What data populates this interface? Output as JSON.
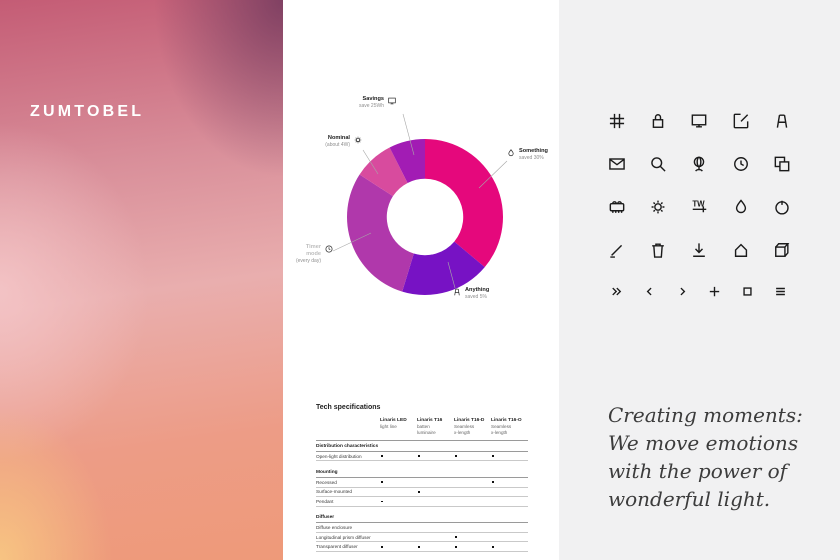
{
  "brand": {
    "logo": "ZUMTOBEL"
  },
  "chart_data": {
    "type": "donut",
    "title": "",
    "inner_radius_ratio": 0.49,
    "legend_position": "callout-labels",
    "segments": [
      {
        "name": "Something",
        "value_label": "saved 30%",
        "color": "#e5087c",
        "degrees": 130,
        "percent": 36.1,
        "icon": "droplet-icon"
      },
      {
        "name": "Anything",
        "value_label": "saved 5%",
        "color": "#7712c4",
        "degrees": 67,
        "percent": 18.6,
        "icon": "easel-icon"
      },
      {
        "name": "Timer mode",
        "value_label": "(every day)",
        "color": "#b038ab",
        "degrees": 106,
        "percent": 29.4,
        "icon": "clock-icon"
      },
      {
        "name": "Nominal",
        "value_label": "(about 4W)",
        "color": "#d84b9e",
        "degrees": 30,
        "percent": 8.3,
        "icon": "sun-icon"
      },
      {
        "name": "Savings",
        "value_label": "save 25Wh",
        "color": "#a21cb4",
        "degrees": 27,
        "percent": 7.5,
        "icon": "monitor-icon"
      }
    ]
  },
  "table": {
    "title": "Tech specifications",
    "columns": [
      {
        "name": "Linaris LED",
        "sub": [
          "light line"
        ]
      },
      {
        "name": "Linaris T16",
        "sub": [
          "batten",
          "luminaire"
        ]
      },
      {
        "name": "Linaris T16-D",
        "sub": [
          "Seamless",
          "x-length"
        ]
      },
      {
        "name": "Linaris T16-O",
        "sub": [
          "Seamless",
          "x-length"
        ]
      }
    ],
    "sections": [
      {
        "header": "Distribution characteristics",
        "rows": [
          {
            "label": "Open-light distribution",
            "dots": [
              true,
              true,
              true,
              true
            ]
          }
        ]
      },
      {
        "header": "Mounting",
        "rows": [
          {
            "label": "Recessed",
            "dots": [
              true,
              false,
              false,
              true
            ]
          },
          {
            "label": "Surface-mounted",
            "dots": [
              false,
              true,
              false,
              false
            ]
          },
          {
            "label": "Pendant",
            "dots": [
              true,
              false,
              false,
              false
            ]
          }
        ]
      },
      {
        "header": "Diffuser",
        "rows": [
          {
            "label": "Diffuse enclosure",
            "dots": [
              false,
              false,
              false,
              false
            ]
          },
          {
            "label": "Longitudinal prism diffuser",
            "dots": [
              false,
              false,
              true,
              false
            ]
          },
          {
            "label": "Transparent diffuser",
            "dots": [
              true,
              true,
              true,
              true
            ]
          }
        ]
      }
    ]
  },
  "icon_grid": {
    "rows": [
      [
        "grid-icon",
        "lock-icon",
        "monitor-icon",
        "edit-icon",
        "easel-icon"
      ],
      [
        "mail-icon",
        "search-icon",
        "globe-icon",
        "clock-icon",
        "copy-icon"
      ],
      [
        "trolley-icon",
        "sun-icon",
        "tunable-white-icon",
        "droplet-icon",
        "dial-icon"
      ],
      [
        "signature-icon",
        "trash-icon",
        "download-icon",
        "house-icon",
        "cube-icon"
      ]
    ],
    "footer": [
      "double-chevron-right-icon",
      "chevron-left-icon",
      "chevron-right-icon",
      "plus-icon",
      "square-icon",
      "menu-icon"
    ]
  },
  "quote": {
    "text": "Creating moments:\nWe move emotions\nwith the power of\nwonderful light."
  },
  "colors": {
    "panel_gray": "#f1f1f2",
    "accent_magenta": "#e5087c",
    "gradient_top_left": "#c45c75",
    "gradient_top_right": "#84496b",
    "gradient_bottom_left": "#f5c287",
    "gradient_bottom_right": "#ec8e74",
    "icon_ink": "#1b1b1b",
    "quote_ink": "#3c3c3c"
  }
}
